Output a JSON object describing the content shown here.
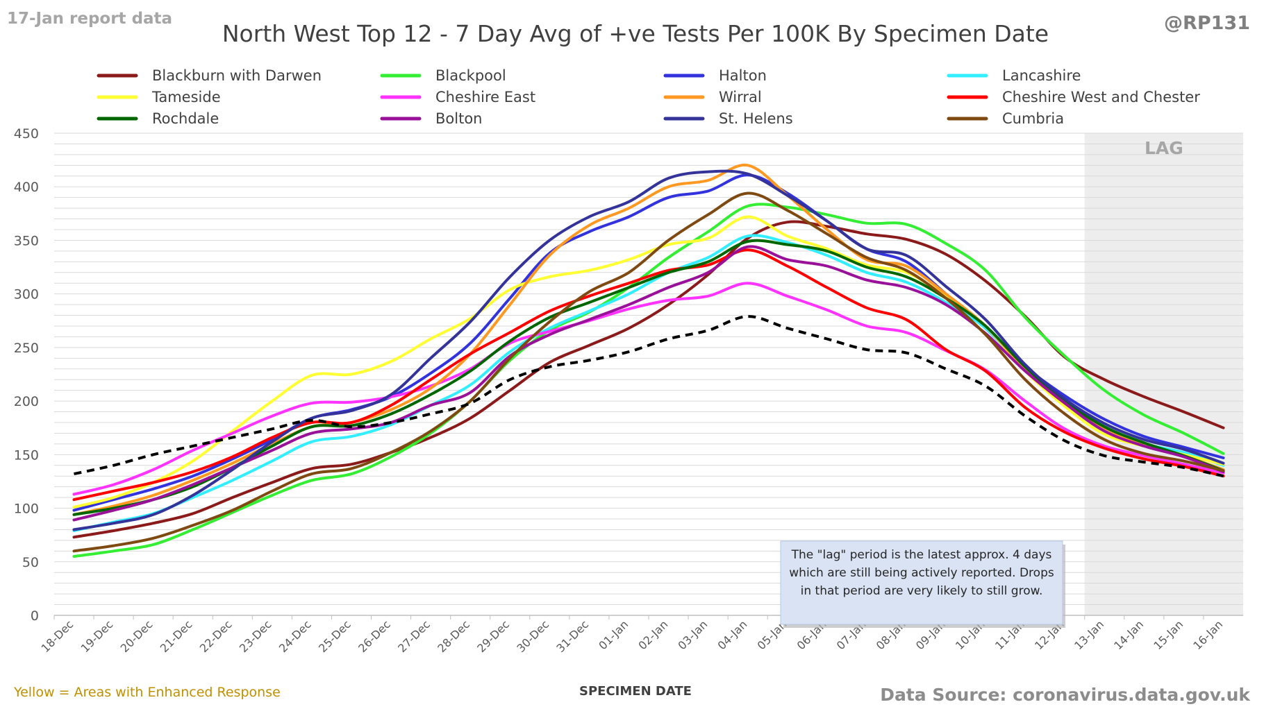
{
  "header": {
    "report_note": "17-Jan report data",
    "handle": "@RP131"
  },
  "footer": {
    "enhanced_note": "Yellow = Areas with Enhanced Response",
    "source": "Data Source: coronavirus.data.gov.uk"
  },
  "annotation": {
    "lines": [
      "The \"lag\" period is the latest approx. 4 days",
      "which are still being actively reported.  Drops",
      "in that period are very likely to still grow."
    ]
  },
  "colors": {
    "lag_band": "#ededed",
    "annotation_fill": "#dae3f3",
    "grid": "#d9d9d9",
    "enhanced_note": "#bf9000",
    "average_line": "#000000"
  },
  "chart_data": {
    "type": "line",
    "title": "North West Top 12 - 7 Day Avg of +ve Tests Per 100K By Specimen Date",
    "xlabel": "SPECIMEN DATE",
    "ylabel": "",
    "ylim": [
      0,
      450
    ],
    "yticks": [
      0,
      50,
      100,
      150,
      200,
      250,
      300,
      350,
      400,
      450
    ],
    "grid": true,
    "legend_position": "top",
    "lag_label": "LAG",
    "lag_start": "13-Jan",
    "lag_end": "16-Jan",
    "categories": [
      "18-Dec",
      "19-Dec",
      "20-Dec",
      "21-Dec",
      "22-Dec",
      "23-Dec",
      "24-Dec",
      "25-Dec",
      "26-Dec",
      "27-Dec",
      "28-Dec",
      "29-Dec",
      "30-Dec",
      "31-Dec",
      "01-Jan",
      "02-Jan",
      "03-Jan",
      "04-Jan",
      "05-Jan",
      "06-Jan",
      "07-Jan",
      "08-Jan",
      "09-Jan",
      "10-Jan",
      "11-Jan",
      "12-Jan",
      "13-Jan",
      "14-Jan",
      "15-Jan",
      "16-Jan"
    ],
    "series": [
      {
        "name": "Blackburn with Darwen",
        "color": "#8b1a1a",
        "values": [
          73,
          79,
          86,
          95,
          110,
          124,
          137,
          141,
          152,
          166,
          184,
          210,
          236,
          252,
          268,
          290,
          318,
          352,
          367,
          363,
          356,
          351,
          337,
          312,
          279,
          241,
          220,
          204,
          190,
          175
        ]
      },
      {
        "name": "Blackpool",
        "color": "#33ee33",
        "values": [
          55,
          60,
          66,
          80,
          96,
          112,
          126,
          132,
          148,
          170,
          200,
          238,
          266,
          283,
          306,
          334,
          358,
          382,
          381,
          374,
          366,
          365,
          347,
          322,
          278,
          242,
          210,
          187,
          170,
          151
        ]
      },
      {
        "name": "Halton",
        "color": "#3333dd",
        "values": [
          98,
          108,
          118,
          130,
          146,
          164,
          184,
          192,
          204,
          226,
          254,
          296,
          338,
          358,
          372,
          390,
          396,
          411,
          394,
          368,
          342,
          330,
          300,
          268,
          232,
          205,
          183,
          167,
          157,
          147
        ]
      },
      {
        "name": "Lancashire",
        "color": "#33eeff",
        "values": [
          79,
          87,
          95,
          110,
          126,
          144,
          162,
          167,
          178,
          196,
          215,
          246,
          268,
          284,
          300,
          320,
          334,
          354,
          348,
          336,
          320,
          311,
          292,
          268,
          229,
          196,
          172,
          160,
          152,
          140
        ]
      },
      {
        "name": "Tameside",
        "color": "#ffff33",
        "values": [
          101,
          110,
          124,
          144,
          172,
          200,
          224,
          225,
          237,
          258,
          277,
          304,
          316,
          322,
          332,
          346,
          352,
          372,
          354,
          342,
          327,
          320,
          298,
          270,
          228,
          195,
          169,
          158,
          150,
          141
        ]
      },
      {
        "name": "Cheshire East",
        "color": "#ff33ff",
        "values": [
          113,
          122,
          136,
          154,
          170,
          186,
          198,
          199,
          204,
          214,
          230,
          254,
          265,
          275,
          286,
          294,
          298,
          310,
          298,
          285,
          270,
          264,
          247,
          229,
          200,
          174,
          158,
          149,
          141,
          133
        ]
      },
      {
        "name": "Wirral",
        "color": "#ff9922",
        "values": [
          94,
          102,
          112,
          126,
          142,
          160,
          176,
          180,
          192,
          212,
          244,
          290,
          336,
          364,
          380,
          400,
          406,
          420,
          392,
          360,
          332,
          326,
          300,
          270,
          230,
          198,
          175,
          159,
          149,
          136
        ]
      },
      {
        "name": "Cheshire West and Chester",
        "color": "#ff0000",
        "values": [
          108,
          116,
          124,
          134,
          148,
          166,
          180,
          180,
          196,
          220,
          244,
          264,
          284,
          298,
          310,
          322,
          327,
          341,
          326,
          306,
          287,
          276,
          248,
          228,
          194,
          171,
          156,
          146,
          139,
          130
        ]
      },
      {
        "name": "Rochdale",
        "color": "#006600",
        "values": [
          94,
          100,
          108,
          120,
          138,
          158,
          176,
          177,
          188,
          206,
          228,
          256,
          278,
          292,
          306,
          320,
          330,
          349,
          346,
          340,
          325,
          316,
          296,
          270,
          232,
          200,
          176,
          161,
          149,
          135
        ]
      },
      {
        "name": "Bolton",
        "color": "#991199",
        "values": [
          89,
          98,
          108,
          122,
          138,
          154,
          170,
          174,
          180,
          196,
          208,
          242,
          262,
          276,
          290,
          306,
          320,
          344,
          332,
          326,
          313,
          306,
          290,
          263,
          228,
          198,
          172,
          158,
          148,
          134
        ]
      },
      {
        "name": "St. Helens",
        "color": "#333399",
        "values": [
          80,
          86,
          94,
          112,
          136,
          162,
          184,
          191,
          206,
          240,
          274,
          316,
          350,
          372,
          386,
          408,
          414,
          412,
          392,
          368,
          342,
          336,
          307,
          276,
          234,
          202,
          179,
          164,
          155,
          142
        ]
      },
      {
        "name": "Cumbria",
        "color": "#7f4a12",
        "values": [
          60,
          65,
          72,
          84,
          98,
          116,
          132,
          137,
          152,
          172,
          200,
          240,
          274,
          302,
          320,
          350,
          374,
          394,
          378,
          356,
          334,
          322,
          296,
          262,
          220,
          188,
          164,
          151,
          144,
          135
        ]
      },
      {
        "name": "",
        "color": "#000000",
        "dashed": true,
        "values": [
          132,
          140,
          150,
          158,
          166,
          174,
          182,
          176,
          180,
          188,
          198,
          220,
          232,
          238,
          246,
          258,
          266,
          279,
          268,
          258,
          248,
          245,
          230,
          214,
          186,
          163,
          149,
          143,
          138,
          130
        ]
      }
    ]
  }
}
